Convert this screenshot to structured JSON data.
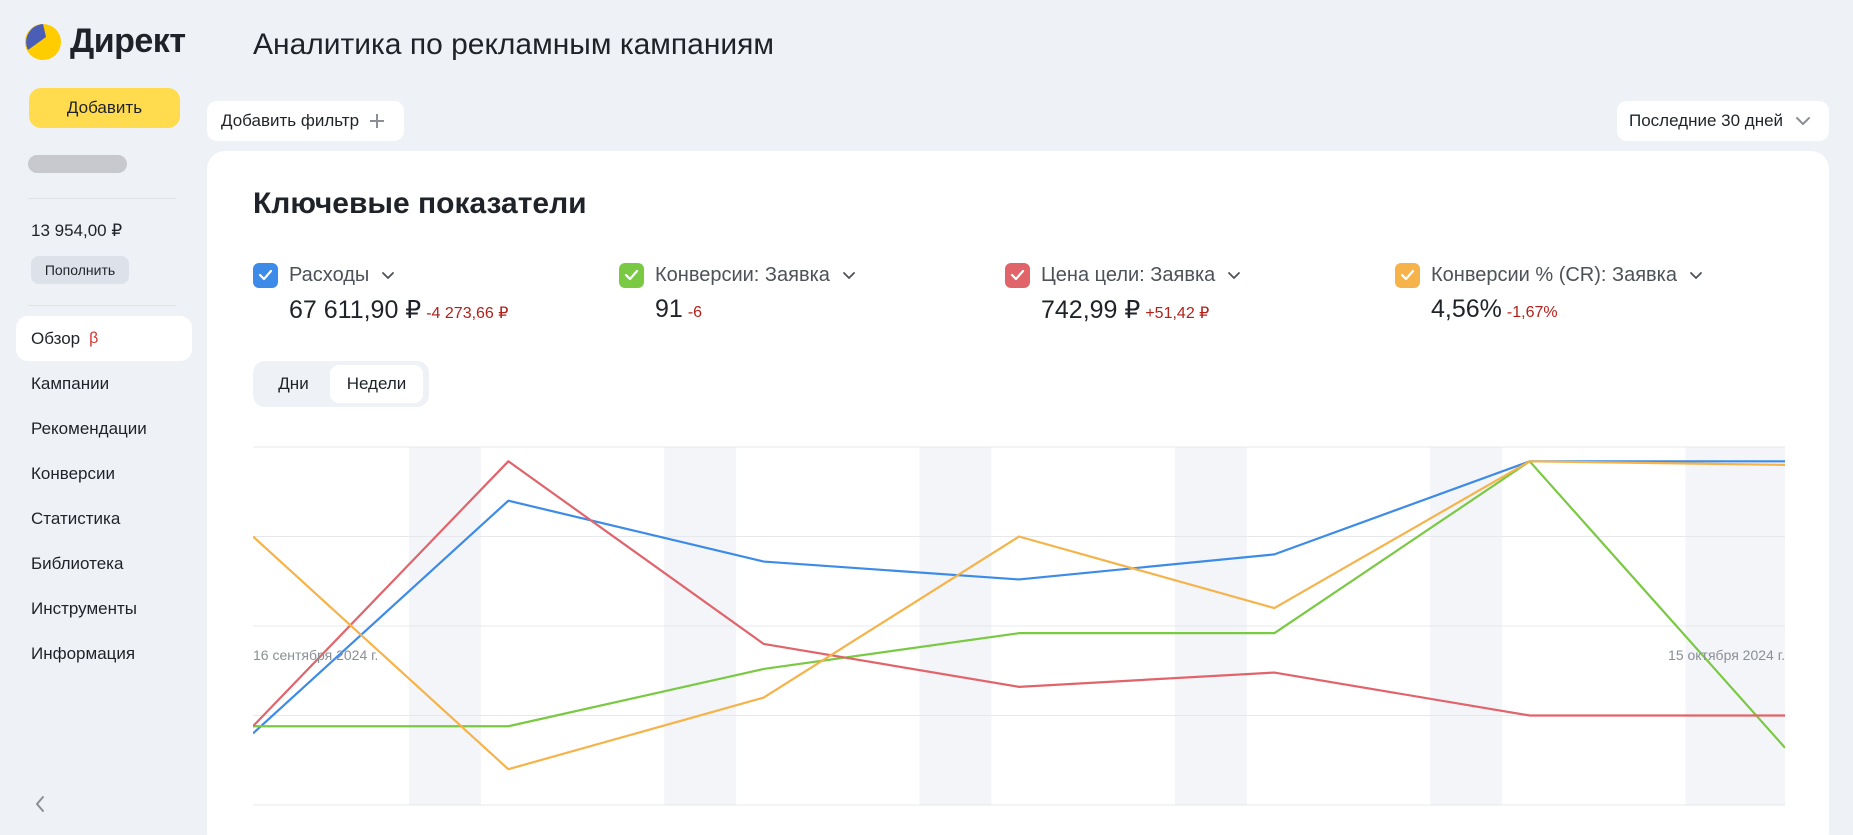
{
  "app": {
    "logo_text": "Директ",
    "add_button": "Добавить",
    "balance": "13 954,00 ₽",
    "topup_button": "Пополнить"
  },
  "sidebar": {
    "items": [
      {
        "label": "Обзор",
        "active": true,
        "badge": "β"
      },
      {
        "label": "Кампании"
      },
      {
        "label": "Рекомендации"
      },
      {
        "label": "Конверсии"
      },
      {
        "label": "Статистика"
      },
      {
        "label": "Библиотека"
      },
      {
        "label": "Инструменты"
      },
      {
        "label": "Информация"
      }
    ]
  },
  "header": {
    "title": "Аналитика по рекламным кампаниям",
    "filter_button": "Добавить фильтр",
    "period": "Последние 30 дней"
  },
  "card": {
    "title": "Ключевые показатели",
    "metrics": [
      {
        "label": "Расходы",
        "value": "67 611,90 ₽",
        "delta": "-4 273,66 ₽",
        "color": "#3d8be8"
      },
      {
        "label": "Конверсии: Заявка",
        "value": "91",
        "delta": "-6",
        "color": "#7ac943"
      },
      {
        "label": "Цена цели: Заявка",
        "value": "742,99 ₽",
        "delta": "+51,42 ₽",
        "color": "#e0646a"
      },
      {
        "label": "Конверсии % (CR): Заявка",
        "value": "4,56%",
        "delta": "-1,67%",
        "color": "#f5b349"
      }
    ],
    "granularity": {
      "days": "Дни",
      "weeks": "Недели",
      "selected": "weeks"
    },
    "date_start": "16 сентября 2024 г.",
    "date_end": "15 октября 2024 г."
  },
  "chart_data": {
    "type": "line",
    "x": [
      0,
      1,
      2,
      3,
      4,
      5,
      6
    ],
    "normalized_note": "values are relative levels 0-100 (no y-axis printed)",
    "ylim": [
      0,
      100
    ],
    "grid": true,
    "series": [
      {
        "name": "Расходы",
        "color": "#3d8be8",
        "values": [
          20,
          85,
          68,
          63,
          70,
          96,
          96
        ]
      },
      {
        "name": "Конверсии: Заявка",
        "color": "#7ac943",
        "values": [
          22,
          22,
          38,
          48,
          48,
          96,
          16
        ]
      },
      {
        "name": "Цена цели: Заявка",
        "color": "#e0646a",
        "values": [
          22,
          96,
          45,
          33,
          37,
          25,
          25
        ]
      },
      {
        "name": "Конверсии % (CR): Заявка",
        "color": "#f5b349",
        "values": [
          75,
          10,
          30,
          75,
          55,
          96,
          95
        ]
      }
    ]
  }
}
